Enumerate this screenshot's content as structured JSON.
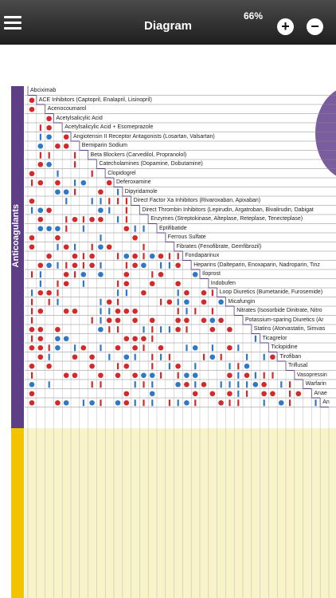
{
  "header": {
    "title": "Diagram",
    "zoom": "66%",
    "zoom_in": "+",
    "zoom_out": "−"
  },
  "section": {
    "label": "Anticoagulants"
  },
  "drugs": [
    "Abciximab",
    "ACE Inhibitors (Captopril, Enalapril, Lisinopril)",
    "Acenocoumarol",
    "Acetylsalicylic Acid",
    "Acetylsalicylic Acid + Esomeprazole",
    "Angiotensin II Receptor Antagonists (Losartan, Valsartan)",
    "Bemiparin Sodium",
    "Beta Blockers (Carvedilol, Propranolol)",
    "Catecholamines (Dopamine, Dobutamine)",
    "Clopidogrel",
    "Deferoxamine",
    "Dipyridamole",
    "Direct Factor Xa Inhibitors (Rivaroxaban, Apixaban)",
    "Direct Thrombin Inhibitors (Lepirudin, Argatroban, Bivalirudin, Dabigat",
    "Enzymes (Streptokinase, Alteplase, Reteplase, Tenecteplase)",
    "Eptifibatide",
    "Ferrous Sulfate",
    "Fibrates (Fenofibrate, Gemfibrozil)",
    "Fondaparinux",
    "Heparins (Dalteparin, Enoxaparin, Nadroparin, Tinz",
    "Iloprost",
    "Indobufen",
    "Loop Diuretics (Bumetanide, Furosemide)",
    "Micafungin",
    "Nitrates (Isosorbide Dinitrate, Nitro",
    "Potassium-sparing Diuretics (Ar",
    "Statins (Atorvastatin, Simvas",
    "Ticagrelor",
    "Ticlopidine",
    "Tirofiban",
    "Triflusal",
    "Vasopressin",
    "Warfarin",
    "Anae",
    "An"
  ],
  "colors": {
    "purple": "#5e3f86",
    "yellow": "#f2c400",
    "red": "#d22a2a",
    "blue": "#2f78c5"
  }
}
